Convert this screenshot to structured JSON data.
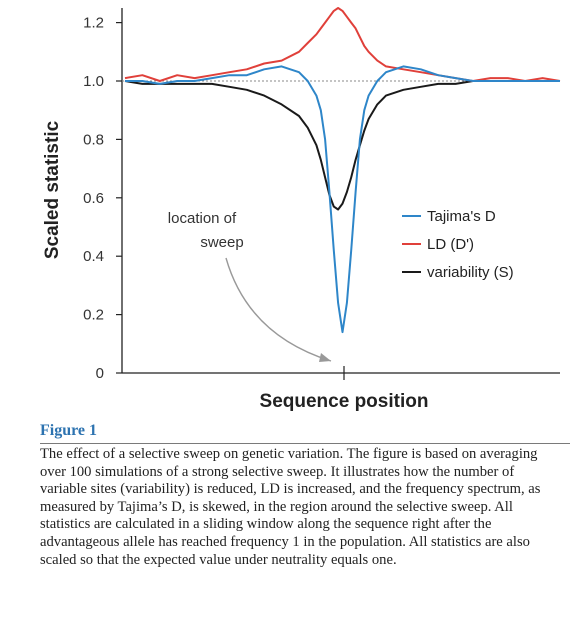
{
  "chart_data": {
    "type": "line",
    "ylabel": "Scaled statistic",
    "xlabel": "Sequence position",
    "ylim": [
      0,
      1.25
    ],
    "yticks": [
      "0",
      "0.2",
      "0.4",
      "0.6",
      "0.8",
      "1.0",
      "1.2"
    ],
    "yticks_values": [
      0,
      0.2,
      0.4,
      0.6,
      0.8,
      1.0,
      1.2
    ],
    "neutral_reference": 1.0,
    "grid": false,
    "legend_position": "right",
    "x": [
      0.0,
      0.04,
      0.08,
      0.12,
      0.16,
      0.2,
      0.24,
      0.28,
      0.32,
      0.36,
      0.4,
      0.42,
      0.44,
      0.45,
      0.46,
      0.47,
      0.48,
      0.49,
      0.5,
      0.51,
      0.52,
      0.53,
      0.54,
      0.55,
      0.56,
      0.58,
      0.6,
      0.64,
      0.68,
      0.72,
      0.76,
      0.8,
      0.84,
      0.88,
      0.92,
      0.96,
      1.0
    ],
    "series": [
      {
        "name": "Tajima's D",
        "color": "#2e86c9",
        "values": [
          1.0,
          1.0,
          0.99,
          1.0,
          1.0,
          1.01,
          1.02,
          1.02,
          1.04,
          1.05,
          1.03,
          1.0,
          0.95,
          0.9,
          0.8,
          0.62,
          0.42,
          0.24,
          0.14,
          0.24,
          0.42,
          0.62,
          0.8,
          0.9,
          0.95,
          1.0,
          1.03,
          1.05,
          1.04,
          1.02,
          1.01,
          1.0,
          1.0,
          1.0,
          1.0,
          1.0,
          1.0
        ]
      },
      {
        "name": "LD (D')",
        "color": "#e0403a",
        "values": [
          1.01,
          1.02,
          1.0,
          1.02,
          1.01,
          1.02,
          1.03,
          1.04,
          1.06,
          1.07,
          1.1,
          1.13,
          1.16,
          1.18,
          1.2,
          1.22,
          1.24,
          1.25,
          1.24,
          1.22,
          1.2,
          1.18,
          1.15,
          1.12,
          1.1,
          1.07,
          1.05,
          1.04,
          1.03,
          1.02,
          1.01,
          1.0,
          1.01,
          1.01,
          1.0,
          1.01,
          1.0
        ]
      },
      {
        "name": "variability (S)",
        "color": "#1a1a1a",
        "values": [
          1.0,
          0.99,
          0.99,
          0.99,
          0.99,
          0.99,
          0.98,
          0.97,
          0.95,
          0.92,
          0.88,
          0.84,
          0.78,
          0.73,
          0.67,
          0.61,
          0.57,
          0.56,
          0.58,
          0.62,
          0.67,
          0.73,
          0.78,
          0.83,
          0.87,
          0.92,
          0.95,
          0.97,
          0.98,
          0.99,
          0.99,
          1.0,
          1.0,
          1.0,
          1.0,
          1.0,
          1.0
        ]
      }
    ],
    "annotations": [
      {
        "text_lines": [
          "location of",
          "sweep"
        ],
        "points_to_x": 0.5
      }
    ]
  },
  "caption": {
    "title": "Figure 1",
    "text": "The effect of a selective sweep on genetic variation. The figure is based on averaging over 100 simulations of a strong selective sweep. It illustrates how the number of variable sites (variability) is reduced, LD is increased, and the frequency spectrum, as measured by Tajima’s D, is skewed, in the region around the selective sweep. All statistics are calculated in a sliding window along the sequence right after the advantageous allele has reached frequency 1 in the population. All statistics are also scaled so that the expected value under neutrality equals one."
  }
}
